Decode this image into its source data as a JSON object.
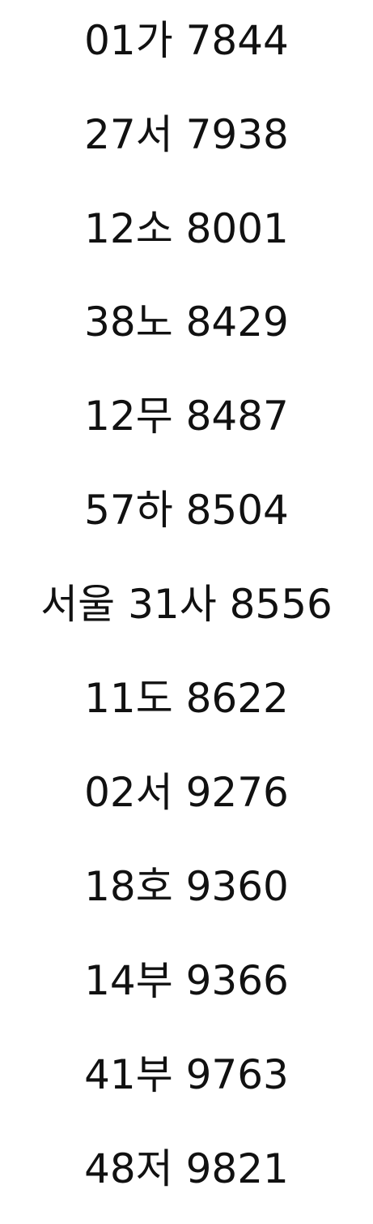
{
  "plates": [
    "01가 7844",
    "27서 7938",
    "12소 8001",
    "38노 8429",
    "12무 8487",
    "57하 8504",
    "서울 31사 8556",
    "11도 8622",
    "02서 9276",
    "18호 9360",
    "14부 9366",
    "41부 9763",
    "48저 9821"
  ]
}
